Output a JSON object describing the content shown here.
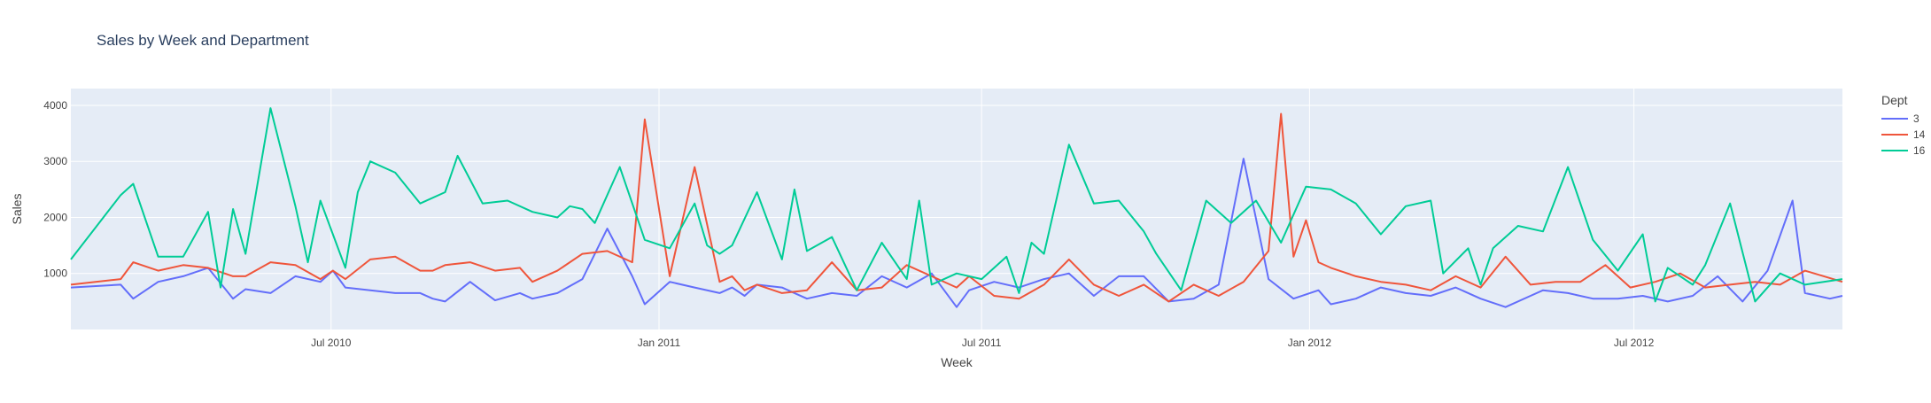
{
  "chart_data": {
    "type": "line",
    "title": "Sales by Week and Department",
    "xlabel": "Week",
    "ylabel": "Sales",
    "legend_title": "Dept",
    "legend_position": "right",
    "grid": true,
    "xlim": [
      "2010-02-05",
      "2012-10-26"
    ],
    "ylim": [
      0,
      4300
    ],
    "x_ticks": [
      {
        "date": "2010-07-01",
        "label": "Jul 2010"
      },
      {
        "date": "2011-01-01",
        "label": "Jan 2011"
      },
      {
        "date": "2011-07-01",
        "label": "Jul 2011"
      },
      {
        "date": "2012-01-01",
        "label": "Jan 2012"
      },
      {
        "date": "2012-07-01",
        "label": "Jul 2012"
      }
    ],
    "y_ticks": [
      1000,
      2000,
      3000,
      4000
    ],
    "colors": {
      "plot_bg": "#e5ecf6",
      "grid": "#ffffff",
      "text": "#444444",
      "title": "#2a3f5f"
    },
    "series": [
      {
        "name": "3",
        "color": "#636efa",
        "points": [
          [
            "2010-02-05",
            750
          ],
          [
            "2010-03-05",
            800
          ],
          [
            "2010-03-12",
            550
          ],
          [
            "2010-03-26",
            850
          ],
          [
            "2010-04-09",
            950
          ],
          [
            "2010-04-23",
            1100
          ],
          [
            "2010-05-07",
            550
          ],
          [
            "2010-05-14",
            720
          ],
          [
            "2010-05-28",
            650
          ],
          [
            "2010-06-11",
            950
          ],
          [
            "2010-06-25",
            850
          ],
          [
            "2010-07-02",
            1050
          ],
          [
            "2010-07-09",
            750
          ],
          [
            "2010-07-23",
            700
          ],
          [
            "2010-08-06",
            650
          ],
          [
            "2010-08-20",
            650
          ],
          [
            "2010-08-27",
            550
          ],
          [
            "2010-09-03",
            500
          ],
          [
            "2010-09-17",
            850
          ],
          [
            "2010-10-01",
            520
          ],
          [
            "2010-10-15",
            650
          ],
          [
            "2010-10-22",
            550
          ],
          [
            "2010-11-05",
            650
          ],
          [
            "2010-11-19",
            900
          ],
          [
            "2010-12-03",
            1800
          ],
          [
            "2010-12-17",
            950
          ],
          [
            "2010-12-24",
            450
          ],
          [
            "2011-01-07",
            850
          ],
          [
            "2011-01-21",
            750
          ],
          [
            "2011-02-04",
            650
          ],
          [
            "2011-02-11",
            750
          ],
          [
            "2011-02-18",
            600
          ],
          [
            "2011-02-25",
            800
          ],
          [
            "2011-03-11",
            750
          ],
          [
            "2011-03-25",
            550
          ],
          [
            "2011-04-08",
            650
          ],
          [
            "2011-04-22",
            600
          ],
          [
            "2011-05-06",
            950
          ],
          [
            "2011-05-20",
            750
          ],
          [
            "2011-06-03",
            1000
          ],
          [
            "2011-06-17",
            400
          ],
          [
            "2011-06-24",
            700
          ],
          [
            "2011-07-08",
            850
          ],
          [
            "2011-07-22",
            750
          ],
          [
            "2011-08-05",
            900
          ],
          [
            "2011-08-19",
            1000
          ],
          [
            "2011-09-02",
            600
          ],
          [
            "2011-09-16",
            950
          ],
          [
            "2011-09-30",
            950
          ],
          [
            "2011-10-14",
            500
          ],
          [
            "2011-10-28",
            550
          ],
          [
            "2011-11-11",
            800
          ],
          [
            "2011-11-25",
            3050
          ],
          [
            "2011-12-09",
            900
          ],
          [
            "2011-12-23",
            550
          ],
          [
            "2012-01-06",
            700
          ],
          [
            "2012-01-13",
            450
          ],
          [
            "2012-01-27",
            550
          ],
          [
            "2012-02-10",
            750
          ],
          [
            "2012-02-24",
            650
          ],
          [
            "2012-03-09",
            600
          ],
          [
            "2012-03-23",
            750
          ],
          [
            "2012-04-06",
            550
          ],
          [
            "2012-04-20",
            400
          ],
          [
            "2012-05-04",
            600
          ],
          [
            "2012-05-11",
            700
          ],
          [
            "2012-05-25",
            650
          ],
          [
            "2012-06-08",
            550
          ],
          [
            "2012-06-22",
            550
          ],
          [
            "2012-07-06",
            600
          ],
          [
            "2012-07-20",
            500
          ],
          [
            "2012-08-03",
            600
          ],
          [
            "2012-08-17",
            950
          ],
          [
            "2012-08-31",
            500
          ],
          [
            "2012-09-14",
            1050
          ],
          [
            "2012-09-28",
            2300
          ],
          [
            "2012-10-05",
            650
          ],
          [
            "2012-10-19",
            550
          ],
          [
            "2012-10-26",
            600
          ]
        ]
      },
      {
        "name": "14",
        "color": "#ef553b",
        "points": [
          [
            "2010-02-05",
            800
          ],
          [
            "2010-03-05",
            900
          ],
          [
            "2010-03-12",
            1200
          ],
          [
            "2010-03-26",
            1050
          ],
          [
            "2010-04-09",
            1150
          ],
          [
            "2010-04-23",
            1100
          ],
          [
            "2010-05-07",
            950
          ],
          [
            "2010-05-14",
            950
          ],
          [
            "2010-05-28",
            1200
          ],
          [
            "2010-06-11",
            1150
          ],
          [
            "2010-06-25",
            900
          ],
          [
            "2010-07-02",
            1050
          ],
          [
            "2010-07-09",
            900
          ],
          [
            "2010-07-23",
            1250
          ],
          [
            "2010-08-06",
            1300
          ],
          [
            "2010-08-20",
            1050
          ],
          [
            "2010-08-27",
            1050
          ],
          [
            "2010-09-03",
            1150
          ],
          [
            "2010-09-17",
            1200
          ],
          [
            "2010-10-01",
            1050
          ],
          [
            "2010-10-15",
            1100
          ],
          [
            "2010-10-22",
            850
          ],
          [
            "2010-11-05",
            1050
          ],
          [
            "2010-11-19",
            1350
          ],
          [
            "2010-12-03",
            1400
          ],
          [
            "2010-12-17",
            1200
          ],
          [
            "2010-12-24",
            3750
          ],
          [
            "2011-01-07",
            950
          ],
          [
            "2011-01-21",
            2900
          ],
          [
            "2011-02-04",
            850
          ],
          [
            "2011-02-11",
            950
          ],
          [
            "2011-02-18",
            700
          ],
          [
            "2011-02-25",
            800
          ],
          [
            "2011-03-11",
            650
          ],
          [
            "2011-03-25",
            700
          ],
          [
            "2011-04-08",
            1200
          ],
          [
            "2011-04-22",
            700
          ],
          [
            "2011-05-06",
            750
          ],
          [
            "2011-05-20",
            1150
          ],
          [
            "2011-06-03",
            950
          ],
          [
            "2011-06-17",
            750
          ],
          [
            "2011-06-24",
            950
          ],
          [
            "2011-07-08",
            600
          ],
          [
            "2011-07-22",
            550
          ],
          [
            "2011-08-05",
            800
          ],
          [
            "2011-08-19",
            1250
          ],
          [
            "2011-09-02",
            800
          ],
          [
            "2011-09-16",
            600
          ],
          [
            "2011-09-30",
            800
          ],
          [
            "2011-10-14",
            500
          ],
          [
            "2011-10-28",
            800
          ],
          [
            "2011-11-11",
            600
          ],
          [
            "2011-11-25",
            850
          ],
          [
            "2011-12-09",
            1400
          ],
          [
            "2011-12-16",
            3850
          ],
          [
            "2011-12-23",
            1300
          ],
          [
            "2011-12-30",
            1950
          ],
          [
            "2012-01-06",
            1200
          ],
          [
            "2012-01-13",
            1100
          ],
          [
            "2012-01-27",
            950
          ],
          [
            "2012-02-10",
            850
          ],
          [
            "2012-02-24",
            800
          ],
          [
            "2012-03-09",
            700
          ],
          [
            "2012-03-23",
            950
          ],
          [
            "2012-04-06",
            750
          ],
          [
            "2012-04-20",
            1300
          ],
          [
            "2012-05-04",
            800
          ],
          [
            "2012-05-18",
            850
          ],
          [
            "2012-06-01",
            850
          ],
          [
            "2012-06-15",
            1150
          ],
          [
            "2012-06-29",
            750
          ],
          [
            "2012-07-13",
            850
          ],
          [
            "2012-07-27",
            1000
          ],
          [
            "2012-08-10",
            750
          ],
          [
            "2012-08-24",
            800
          ],
          [
            "2012-09-07",
            850
          ],
          [
            "2012-09-21",
            800
          ],
          [
            "2012-10-05",
            1050
          ],
          [
            "2012-10-26",
            850
          ]
        ]
      },
      {
        "name": "16",
        "color": "#00cc96",
        "points": [
          [
            "2010-02-05",
            1250
          ],
          [
            "2010-03-05",
            2400
          ],
          [
            "2010-03-12",
            2600
          ],
          [
            "2010-03-26",
            1300
          ],
          [
            "2010-04-09",
            1300
          ],
          [
            "2010-04-23",
            2100
          ],
          [
            "2010-04-30",
            750
          ],
          [
            "2010-05-07",
            2150
          ],
          [
            "2010-05-14",
            1350
          ],
          [
            "2010-05-28",
            3950
          ],
          [
            "2010-06-11",
            2200
          ],
          [
            "2010-06-18",
            1200
          ],
          [
            "2010-06-25",
            2300
          ],
          [
            "2010-07-02",
            1700
          ],
          [
            "2010-07-09",
            1100
          ],
          [
            "2010-07-16",
            2450
          ],
          [
            "2010-07-23",
            3000
          ],
          [
            "2010-08-06",
            2800
          ],
          [
            "2010-08-20",
            2250
          ],
          [
            "2010-09-03",
            2450
          ],
          [
            "2010-09-10",
            3100
          ],
          [
            "2010-09-24",
            2250
          ],
          [
            "2010-10-08",
            2300
          ],
          [
            "2010-10-22",
            2100
          ],
          [
            "2010-11-05",
            2000
          ],
          [
            "2010-11-12",
            2200
          ],
          [
            "2010-11-19",
            2150
          ],
          [
            "2010-11-26",
            1900
          ],
          [
            "2010-12-10",
            2900
          ],
          [
            "2010-12-24",
            1600
          ],
          [
            "2011-01-07",
            1450
          ],
          [
            "2011-01-21",
            2250
          ],
          [
            "2011-01-28",
            1500
          ],
          [
            "2011-02-04",
            1350
          ],
          [
            "2011-02-11",
            1500
          ],
          [
            "2011-02-25",
            2450
          ],
          [
            "2011-03-11",
            1250
          ],
          [
            "2011-03-18",
            2500
          ],
          [
            "2011-03-25",
            1400
          ],
          [
            "2011-04-08",
            1650
          ],
          [
            "2011-04-22",
            700
          ],
          [
            "2011-05-06",
            1550
          ],
          [
            "2011-05-20",
            900
          ],
          [
            "2011-05-27",
            2300
          ],
          [
            "2011-06-03",
            800
          ],
          [
            "2011-06-17",
            1000
          ],
          [
            "2011-07-01",
            900
          ],
          [
            "2011-07-15",
            1300
          ],
          [
            "2011-07-22",
            650
          ],
          [
            "2011-07-29",
            1550
          ],
          [
            "2011-08-05",
            1350
          ],
          [
            "2011-08-19",
            3300
          ],
          [
            "2011-09-02",
            2250
          ],
          [
            "2011-09-16",
            2300
          ],
          [
            "2011-09-30",
            1750
          ],
          [
            "2011-10-07",
            1350
          ],
          [
            "2011-10-21",
            700
          ],
          [
            "2011-11-04",
            2300
          ],
          [
            "2011-11-18",
            1900
          ],
          [
            "2011-12-02",
            2300
          ],
          [
            "2011-12-16",
            1550
          ],
          [
            "2011-12-30",
            2550
          ],
          [
            "2012-01-13",
            2500
          ],
          [
            "2012-01-27",
            2250
          ],
          [
            "2012-02-10",
            1700
          ],
          [
            "2012-02-24",
            2200
          ],
          [
            "2012-03-09",
            2300
          ],
          [
            "2012-03-16",
            1000
          ],
          [
            "2012-03-30",
            1450
          ],
          [
            "2012-04-06",
            800
          ],
          [
            "2012-04-13",
            1450
          ],
          [
            "2012-04-27",
            1850
          ],
          [
            "2012-05-11",
            1750
          ],
          [
            "2012-05-25",
            2900
          ],
          [
            "2012-06-08",
            1600
          ],
          [
            "2012-06-22",
            1050
          ],
          [
            "2012-07-06",
            1700
          ],
          [
            "2012-07-13",
            500
          ],
          [
            "2012-07-20",
            1100
          ],
          [
            "2012-08-03",
            800
          ],
          [
            "2012-08-10",
            1150
          ],
          [
            "2012-08-24",
            2250
          ],
          [
            "2012-09-07",
            500
          ],
          [
            "2012-09-21",
            1000
          ],
          [
            "2012-10-05",
            800
          ],
          [
            "2012-10-26",
            900
          ]
        ]
      }
    ]
  }
}
